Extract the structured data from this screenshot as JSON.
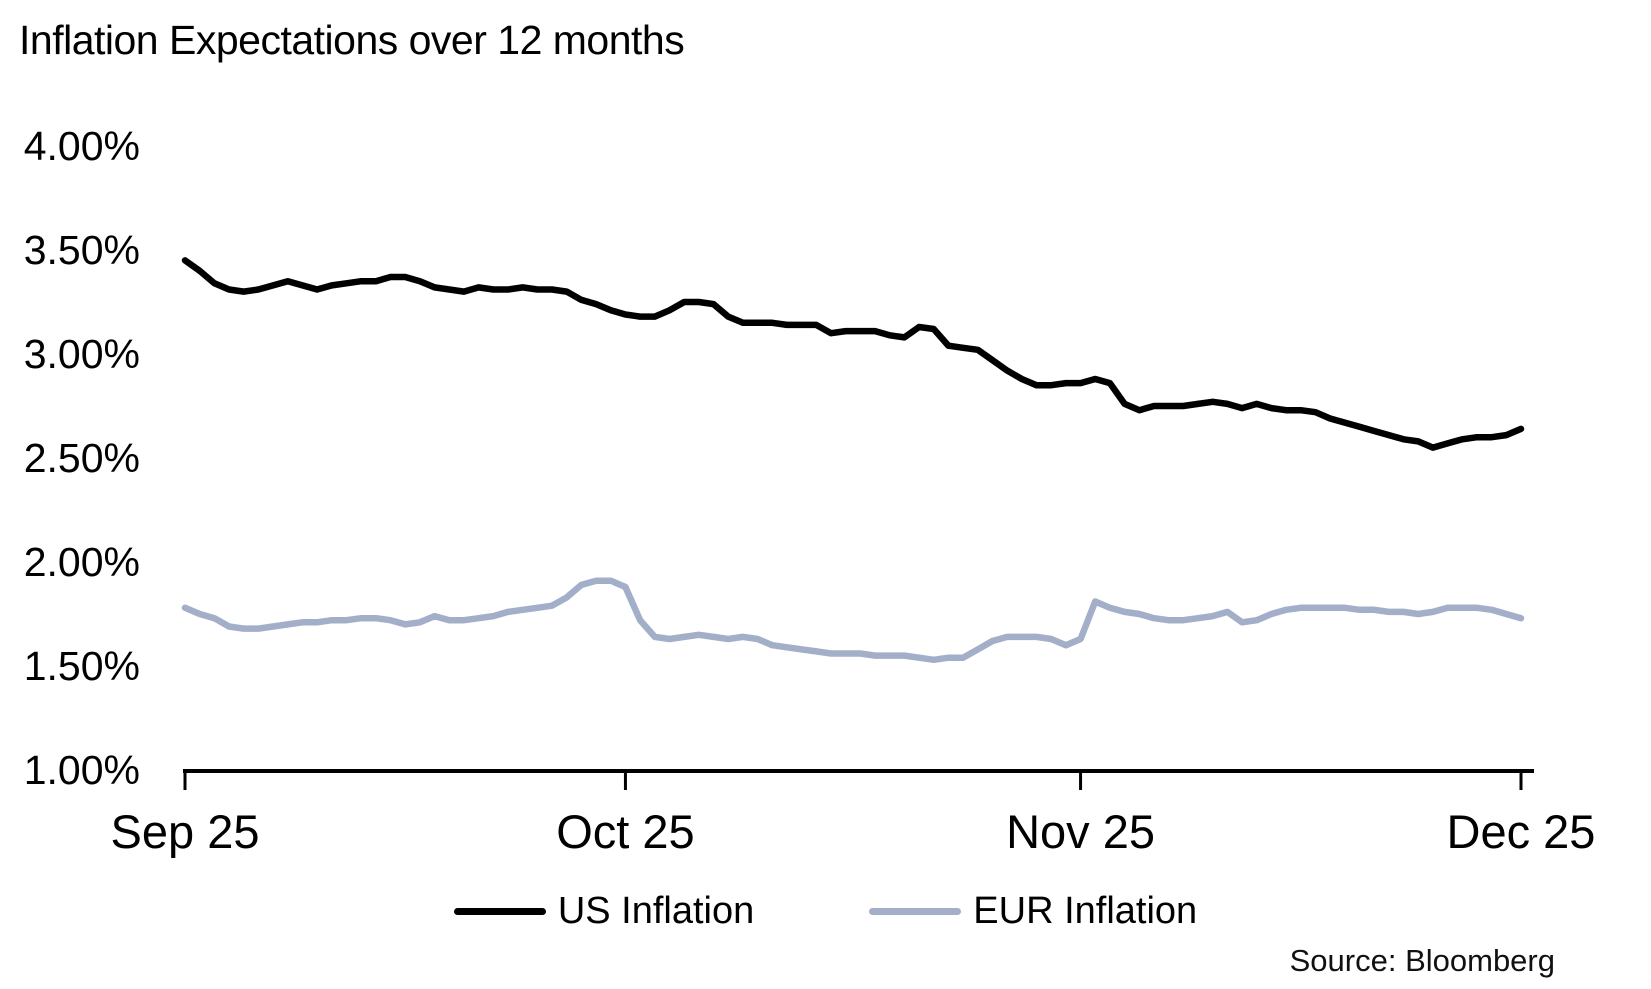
{
  "title": "Inflation Expectations over 12 months",
  "source": "Source: Bloomberg",
  "colors": {
    "background": "#ffffff",
    "axis": "#000000",
    "text": "#000000",
    "us_line": "#000000",
    "eur_line": "#a3afc9"
  },
  "chart_data": {
    "type": "line",
    "title": "Inflation Expectations over 12 months",
    "source": "Source: Bloomberg",
    "grid": false,
    "legend_position": "bottom",
    "x_axis": {
      "tick_labels": [
        "Sep 25",
        "Oct 25",
        "Nov 25",
        "Dec 25"
      ],
      "tick_day_offsets": [
        0,
        30,
        61,
        91
      ],
      "total_days": 91,
      "frequency": "daily"
    },
    "y_axis": {
      "unit": "%",
      "min": 1.0,
      "max": 4.0,
      "tick_labels": [
        "4.00%",
        "3.50%",
        "3.00%",
        "2.50%",
        "2.00%",
        "1.50%",
        "1.00%"
      ],
      "tick_values": [
        4.0,
        3.5,
        3.0,
        2.5,
        2.0,
        1.5,
        1.0
      ]
    },
    "series": [
      {
        "name": "US Inflation",
        "color": "#000000",
        "values": [
          3.45,
          3.4,
          3.34,
          3.31,
          3.3,
          3.31,
          3.33,
          3.35,
          3.33,
          3.31,
          3.33,
          3.34,
          3.35,
          3.35,
          3.37,
          3.37,
          3.35,
          3.32,
          3.31,
          3.3,
          3.32,
          3.31,
          3.31,
          3.32,
          3.31,
          3.31,
          3.3,
          3.26,
          3.24,
          3.21,
          3.19,
          3.18,
          3.18,
          3.21,
          3.25,
          3.25,
          3.24,
          3.18,
          3.15,
          3.15,
          3.15,
          3.14,
          3.14,
          3.14,
          3.1,
          3.11,
          3.11,
          3.11,
          3.09,
          3.08,
          3.13,
          3.12,
          3.04,
          3.03,
          3.02,
          2.97,
          2.92,
          2.88,
          2.85,
          2.85,
          2.86,
          2.86,
          2.88,
          2.86,
          2.76,
          2.73,
          2.75,
          2.75,
          2.75,
          2.76,
          2.77,
          2.76,
          2.74,
          2.76,
          2.74,
          2.73,
          2.73,
          2.72,
          2.69,
          2.67,
          2.65,
          2.63,
          2.61,
          2.59,
          2.58,
          2.55,
          2.57,
          2.59,
          2.6,
          2.6,
          2.61,
          2.64
        ]
      },
      {
        "name": "EUR Inflation",
        "color": "#a3afc9",
        "values": [
          1.78,
          1.75,
          1.73,
          1.69,
          1.68,
          1.68,
          1.69,
          1.7,
          1.71,
          1.71,
          1.72,
          1.72,
          1.73,
          1.73,
          1.72,
          1.7,
          1.71,
          1.74,
          1.72,
          1.72,
          1.73,
          1.74,
          1.76,
          1.77,
          1.78,
          1.79,
          1.83,
          1.89,
          1.91,
          1.91,
          1.88,
          1.72,
          1.64,
          1.63,
          1.64,
          1.65,
          1.64,
          1.63,
          1.64,
          1.63,
          1.6,
          1.59,
          1.58,
          1.57,
          1.56,
          1.56,
          1.56,
          1.55,
          1.55,
          1.55,
          1.54,
          1.53,
          1.54,
          1.54,
          1.58,
          1.62,
          1.64,
          1.64,
          1.64,
          1.63,
          1.6,
          1.63,
          1.81,
          1.78,
          1.76,
          1.75,
          1.73,
          1.72,
          1.72,
          1.73,
          1.74,
          1.76,
          1.71,
          1.72,
          1.75,
          1.77,
          1.78,
          1.78,
          1.78,
          1.78,
          1.77,
          1.77,
          1.76,
          1.76,
          1.75,
          1.76,
          1.78,
          1.78,
          1.78,
          1.77,
          1.75,
          1.73
        ]
      }
    ]
  }
}
